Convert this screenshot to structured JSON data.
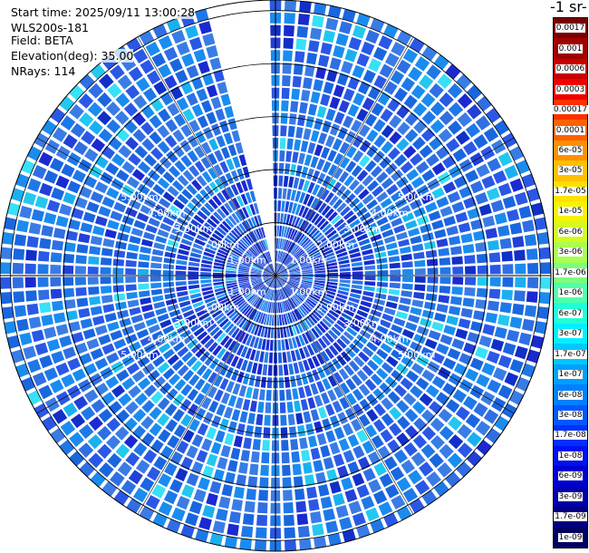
{
  "info": {
    "start_time": "Start time: 2025/09/11 13:00:28",
    "instrument": "WLS200s-181",
    "field": "Field: BETA",
    "elevation": "Elevation(deg): 35.00",
    "nrays": "NRays: 114"
  },
  "colorbar": {
    "unit_label": "-1 sr-",
    "ticks": [
      {
        "label": "0.0017",
        "color": "#7a0000",
        "text": "#ffffff"
      },
      {
        "label": "0.001",
        "color": "#a10000",
        "text": "#ffffff"
      },
      {
        "label": "0.0006",
        "color": "#c80000",
        "text": "#ffffff"
      },
      {
        "label": "0.0003",
        "color": "#f00000",
        "text": "#ffffff"
      },
      {
        "label": "0.00017",
        "color": "#ff3000",
        "text": "#ffffff"
      },
      {
        "label": "0.0001",
        "color": "#ff6000",
        "text": "#000000"
      },
      {
        "label": "6e-05",
        "color": "#ff9000",
        "text": "#000000"
      },
      {
        "label": "3e-05",
        "color": "#ffbf00",
        "text": "#000000"
      },
      {
        "label": "1.7e-05",
        "color": "#ffe000",
        "text": "#000000"
      },
      {
        "label": "1e-05",
        "color": "#f4f400",
        "text": "#000000"
      },
      {
        "label": "6e-06",
        "color": "#d4fb20",
        "text": "#000000"
      },
      {
        "label": "3e-06",
        "color": "#a8ff50",
        "text": "#000000"
      },
      {
        "label": "1.7e-06",
        "color": "#7cff7c",
        "text": "#000000"
      },
      {
        "label": "1e-06",
        "color": "#50ffa8",
        "text": "#000000"
      },
      {
        "label": "6e-07",
        "color": "#20ffd8",
        "text": "#000000"
      },
      {
        "label": "3e-07",
        "color": "#00f0ff",
        "text": "#000000"
      },
      {
        "label": "1.7e-07",
        "color": "#00c8ff",
        "text": "#000000"
      },
      {
        "label": "1e-07",
        "color": "#00a0ff",
        "text": "#000000"
      },
      {
        "label": "6e-08",
        "color": "#0080ff",
        "text": "#000000"
      },
      {
        "label": "3e-08",
        "color": "#0058ff",
        "text": "#000000"
      },
      {
        "label": "1.7e-08",
        "color": "#0030ff",
        "text": "#ffffff"
      },
      {
        "label": "1e-08",
        "color": "#0010f0",
        "text": "#ffffff"
      },
      {
        "label": "6e-09",
        "color": "#0000d0",
        "text": "#ffffff"
      },
      {
        "label": "3e-09",
        "color": "#0000a8",
        "text": "#ffffff"
      },
      {
        "label": "1.7e-09",
        "color": "#000080",
        "text": "#ffffff"
      },
      {
        "label": "1e-09",
        "color": "#000060",
        "text": "#ffffff"
      }
    ]
  },
  "ring_labels": [
    "1.00km",
    "2.00km",
    "3.00km",
    "4.00km",
    "5.00km"
  ],
  "ring_distances_km": [
    1,
    2,
    3,
    4,
    5
  ],
  "max_range_km": 5.2,
  "nrays": 114,
  "missing_sector_deg": [
    -14,
    -1
  ],
  "palette": {
    "dominant": [
      "#1a66e0",
      "#1f78e8",
      "#2a58e6",
      "#2f6fe3",
      "#1a8cf0",
      "#3a7ce6"
    ],
    "accent": [
      "#22c8f0",
      "#38e0f8",
      "#1ab0f0"
    ],
    "dark": [
      "#1a2ad0",
      "#2240d8",
      "#1030c8"
    ]
  }
}
